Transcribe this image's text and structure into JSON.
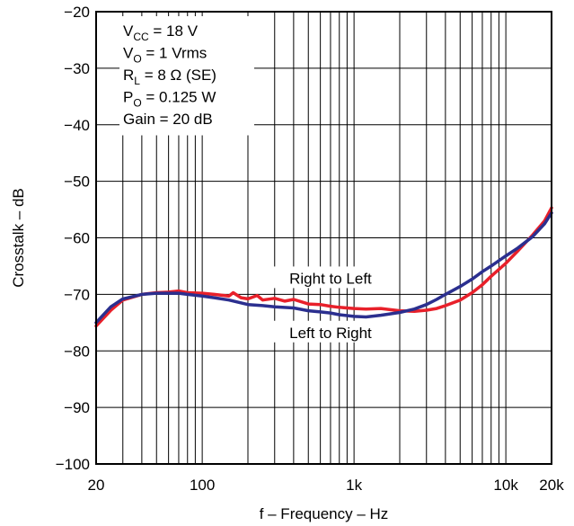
{
  "chart_data": {
    "type": "line",
    "title": "",
    "xlabel": "f – Frequency – Hz",
    "ylabel": "Crosstalk – dB",
    "xscale": "log",
    "xlim": [
      20,
      20000
    ],
    "ylim": [
      -100,
      -20
    ],
    "grid": true,
    "x_tick_labels": [
      {
        "value": 20,
        "label": "20"
      },
      {
        "value": 100,
        "label": "100"
      },
      {
        "value": 1000,
        "label": "1k"
      },
      {
        "value": 10000,
        "label": "10k"
      },
      {
        "value": 20000,
        "label": "20k"
      }
    ],
    "y_tick_labels": [
      {
        "value": -20,
        "label": "−20"
      },
      {
        "value": -30,
        "label": "−30"
      },
      {
        "value": -40,
        "label": "−40"
      },
      {
        "value": -50,
        "label": "−50"
      },
      {
        "value": -60,
        "label": "−60"
      },
      {
        "value": -70,
        "label": "−70"
      },
      {
        "value": -80,
        "label": "−80"
      },
      {
        "value": -90,
        "label": "−90"
      },
      {
        "value": -100,
        "label": "−100"
      }
    ],
    "conditions": [
      {
        "base": "V",
        "sub": "CC",
        "rest": " = 18 V"
      },
      {
        "base": "V",
        "sub": "O",
        "rest": " = 1 Vrms"
      },
      {
        "base": "R",
        "sub": "L",
        "rest": " = 8 Ω (SE)"
      },
      {
        "base": "P",
        "sub": "O",
        "rest": " = 0.125 W"
      },
      {
        "base": "Gain = 20 dB",
        "sub": "",
        "rest": ""
      }
    ],
    "series": [
      {
        "name": "Right to Left",
        "color": "#e8202a",
        "x": [
          20,
          25,
          30,
          40,
          50,
          60,
          70,
          80,
          100,
          120,
          150,
          160,
          180,
          200,
          230,
          250,
          300,
          350,
          400,
          500,
          600,
          700,
          800,
          1000,
          1200,
          1500,
          2000,
          2500,
          3000,
          3500,
          4000,
          5000,
          6000,
          7000,
          8000,
          10000,
          12000,
          15000,
          18000,
          20000
        ],
        "y": [
          -75.6,
          -72.8,
          -71.0,
          -70.0,
          -69.7,
          -69.6,
          -69.4,
          -69.7,
          -69.8,
          -70.0,
          -70.3,
          -69.7,
          -70.6,
          -70.8,
          -70.2,
          -71.0,
          -70.7,
          -71.2,
          -70.9,
          -71.7,
          -71.8,
          -72.1,
          -72.3,
          -72.5,
          -72.6,
          -72.5,
          -72.9,
          -73.0,
          -72.8,
          -72.5,
          -72.0,
          -71.0,
          -69.7,
          -68.3,
          -66.8,
          -64.5,
          -62.3,
          -59.5,
          -57.0,
          -54.7
        ]
      },
      {
        "name": "Left to Right",
        "color": "#2b2f8f",
        "x": [
          20,
          25,
          30,
          40,
          50,
          60,
          70,
          80,
          100,
          120,
          150,
          200,
          250,
          300,
          400,
          500,
          600,
          700,
          800,
          1000,
          1200,
          1500,
          2000,
          2500,
          3000,
          3500,
          4000,
          5000,
          6000,
          7000,
          8000,
          10000,
          12000,
          15000,
          18000,
          20000
        ],
        "y": [
          -75.0,
          -72.2,
          -70.8,
          -70.0,
          -69.8,
          -69.8,
          -69.8,
          -70.0,
          -70.3,
          -70.6,
          -71.0,
          -71.8,
          -72.0,
          -72.2,
          -72.4,
          -72.9,
          -73.1,
          -73.3,
          -73.6,
          -73.9,
          -74.0,
          -73.7,
          -73.2,
          -72.6,
          -71.8,
          -70.9,
          -70.0,
          -68.6,
          -67.3,
          -66.0,
          -65.0,
          -63.2,
          -61.8,
          -59.8,
          -57.5,
          -55.6
        ]
      }
    ],
    "annotations": [
      {
        "text": "Right to Left",
        "x": 700,
        "y": -67.3
      },
      {
        "text": "Left to Right",
        "x": 700,
        "y": -76.9
      }
    ]
  }
}
